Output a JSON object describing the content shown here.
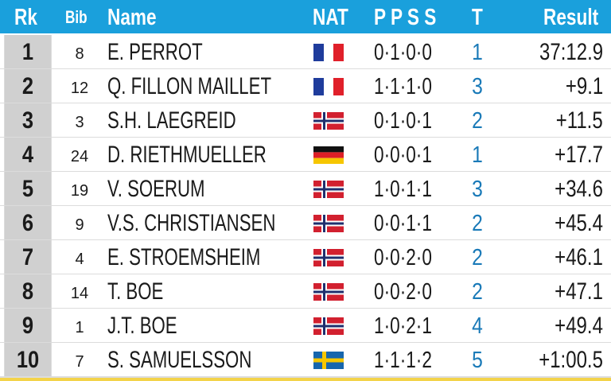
{
  "header": {
    "rk": "Rk",
    "bib": "Bib",
    "name": "Name",
    "nat": "NAT",
    "ppss": "P P S S",
    "t": "T",
    "result": "Result"
  },
  "colors": {
    "header_bg": "#1aa0dc",
    "rank_bg": "#d0d0d0",
    "t_color": "#1a7ab8",
    "frame": "#f3d34a"
  },
  "rows": [
    {
      "rk": "1",
      "bib": "8",
      "name": "E. PERROT",
      "nat": "france-flag-icon",
      "ppss": "0·1·0·0",
      "t": "1",
      "result": "37:12.9"
    },
    {
      "rk": "2",
      "bib": "12",
      "name": "Q. FILLON MAILLET",
      "nat": "france-flag-icon",
      "ppss": "1·1·1·0",
      "t": "3",
      "result": "+9.1"
    },
    {
      "rk": "3",
      "bib": "3",
      "name": "S.H. LAEGREID",
      "nat": "norway-flag-icon",
      "ppss": "0·1·0·1",
      "t": "2",
      "result": "+11.5"
    },
    {
      "rk": "4",
      "bib": "24",
      "name": "D. RIETHMUELLER",
      "nat": "germany-flag-icon",
      "ppss": "0·0·0·1",
      "t": "1",
      "result": "+17.7"
    },
    {
      "rk": "5",
      "bib": "19",
      "name": "V. SOERUM",
      "nat": "norway-flag-icon",
      "ppss": "1·0·1·1",
      "t": "3",
      "result": "+34.6"
    },
    {
      "rk": "6",
      "bib": "9",
      "name": "V.S. CHRISTIANSEN",
      "nat": "norway-flag-icon",
      "ppss": "0·0·1·1",
      "t": "2",
      "result": "+45.4"
    },
    {
      "rk": "7",
      "bib": "4",
      "name": "E. STROEMSHEIM",
      "nat": "norway-flag-icon",
      "ppss": "0·0·2·0",
      "t": "2",
      "result": "+46.1"
    },
    {
      "rk": "8",
      "bib": "14",
      "name": "T. BOE",
      "nat": "norway-flag-icon",
      "ppss": "0·0·2·0",
      "t": "2",
      "result": "+47.1"
    },
    {
      "rk": "9",
      "bib": "1",
      "name": "J.T. BOE",
      "nat": "norway-flag-icon",
      "ppss": "1·0·2·1",
      "t": "4",
      "result": "+49.4"
    },
    {
      "rk": "10",
      "bib": "7",
      "name": "S. SAMUELSSON",
      "nat": "sweden-flag-icon",
      "ppss": "1·1·1·2",
      "t": "5",
      "result": "+1:00.5"
    }
  ]
}
